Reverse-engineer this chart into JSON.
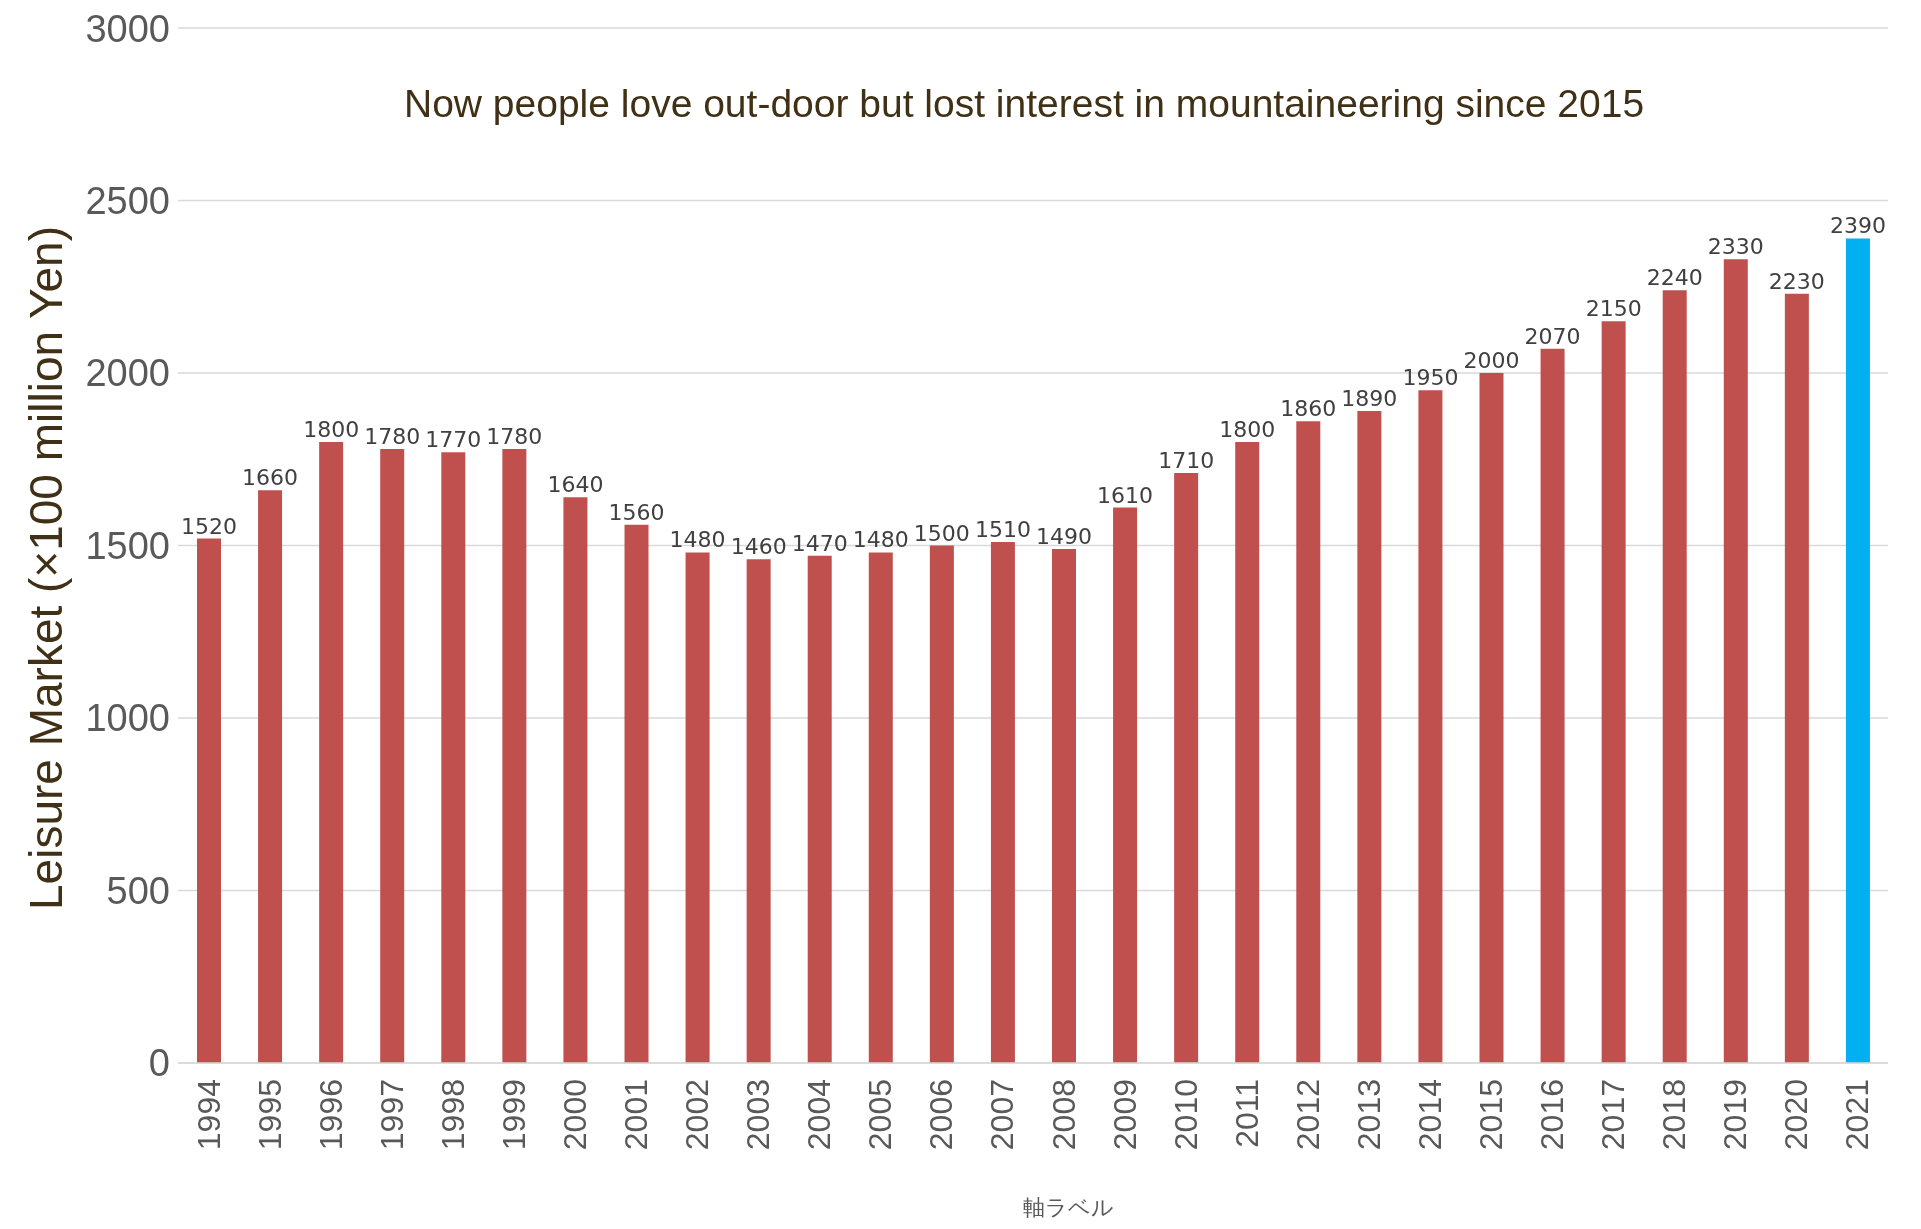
{
  "chart_data": {
    "type": "bar",
    "title": "Now people love out-door but lost interest in  mountaineering since 2015",
    "xlabel": "軸ラベル",
    "ylabel": "Leisure Market (×100 million Yen)",
    "categories": [
      "1994",
      "1995",
      "1996",
      "1997",
      "1998",
      "1999",
      "2000",
      "2001",
      "2002",
      "2003",
      "2004",
      "2005",
      "2006",
      "2007",
      "2008",
      "2009",
      "2010",
      "2011",
      "2012",
      "2013",
      "2014",
      "2015",
      "2016",
      "2017",
      "2018",
      "2019",
      "2020",
      "2021"
    ],
    "values": [
      1520,
      1660,
      1800,
      1780,
      1770,
      1780,
      1640,
      1560,
      1480,
      1460,
      1470,
      1480,
      1500,
      1510,
      1490,
      1610,
      1710,
      1800,
      1860,
      1890,
      1950,
      2000,
      2070,
      2150,
      2240,
      2330,
      2230,
      2390
    ],
    "colors": [
      "#c0504d",
      "#c0504d",
      "#c0504d",
      "#c0504d",
      "#c0504d",
      "#c0504d",
      "#c0504d",
      "#c0504d",
      "#c0504d",
      "#c0504d",
      "#c0504d",
      "#c0504d",
      "#c0504d",
      "#c0504d",
      "#c0504d",
      "#c0504d",
      "#c0504d",
      "#c0504d",
      "#c0504d",
      "#c0504d",
      "#c0504d",
      "#c0504d",
      "#c0504d",
      "#c0504d",
      "#c0504d",
      "#c0504d",
      "#c0504d",
      "#00b0f0"
    ],
    "ylim": [
      0,
      3000
    ],
    "yticks": [
      0,
      500,
      1000,
      1500,
      2000,
      2500,
      3000
    ],
    "grid": "y",
    "data_labels": true
  }
}
